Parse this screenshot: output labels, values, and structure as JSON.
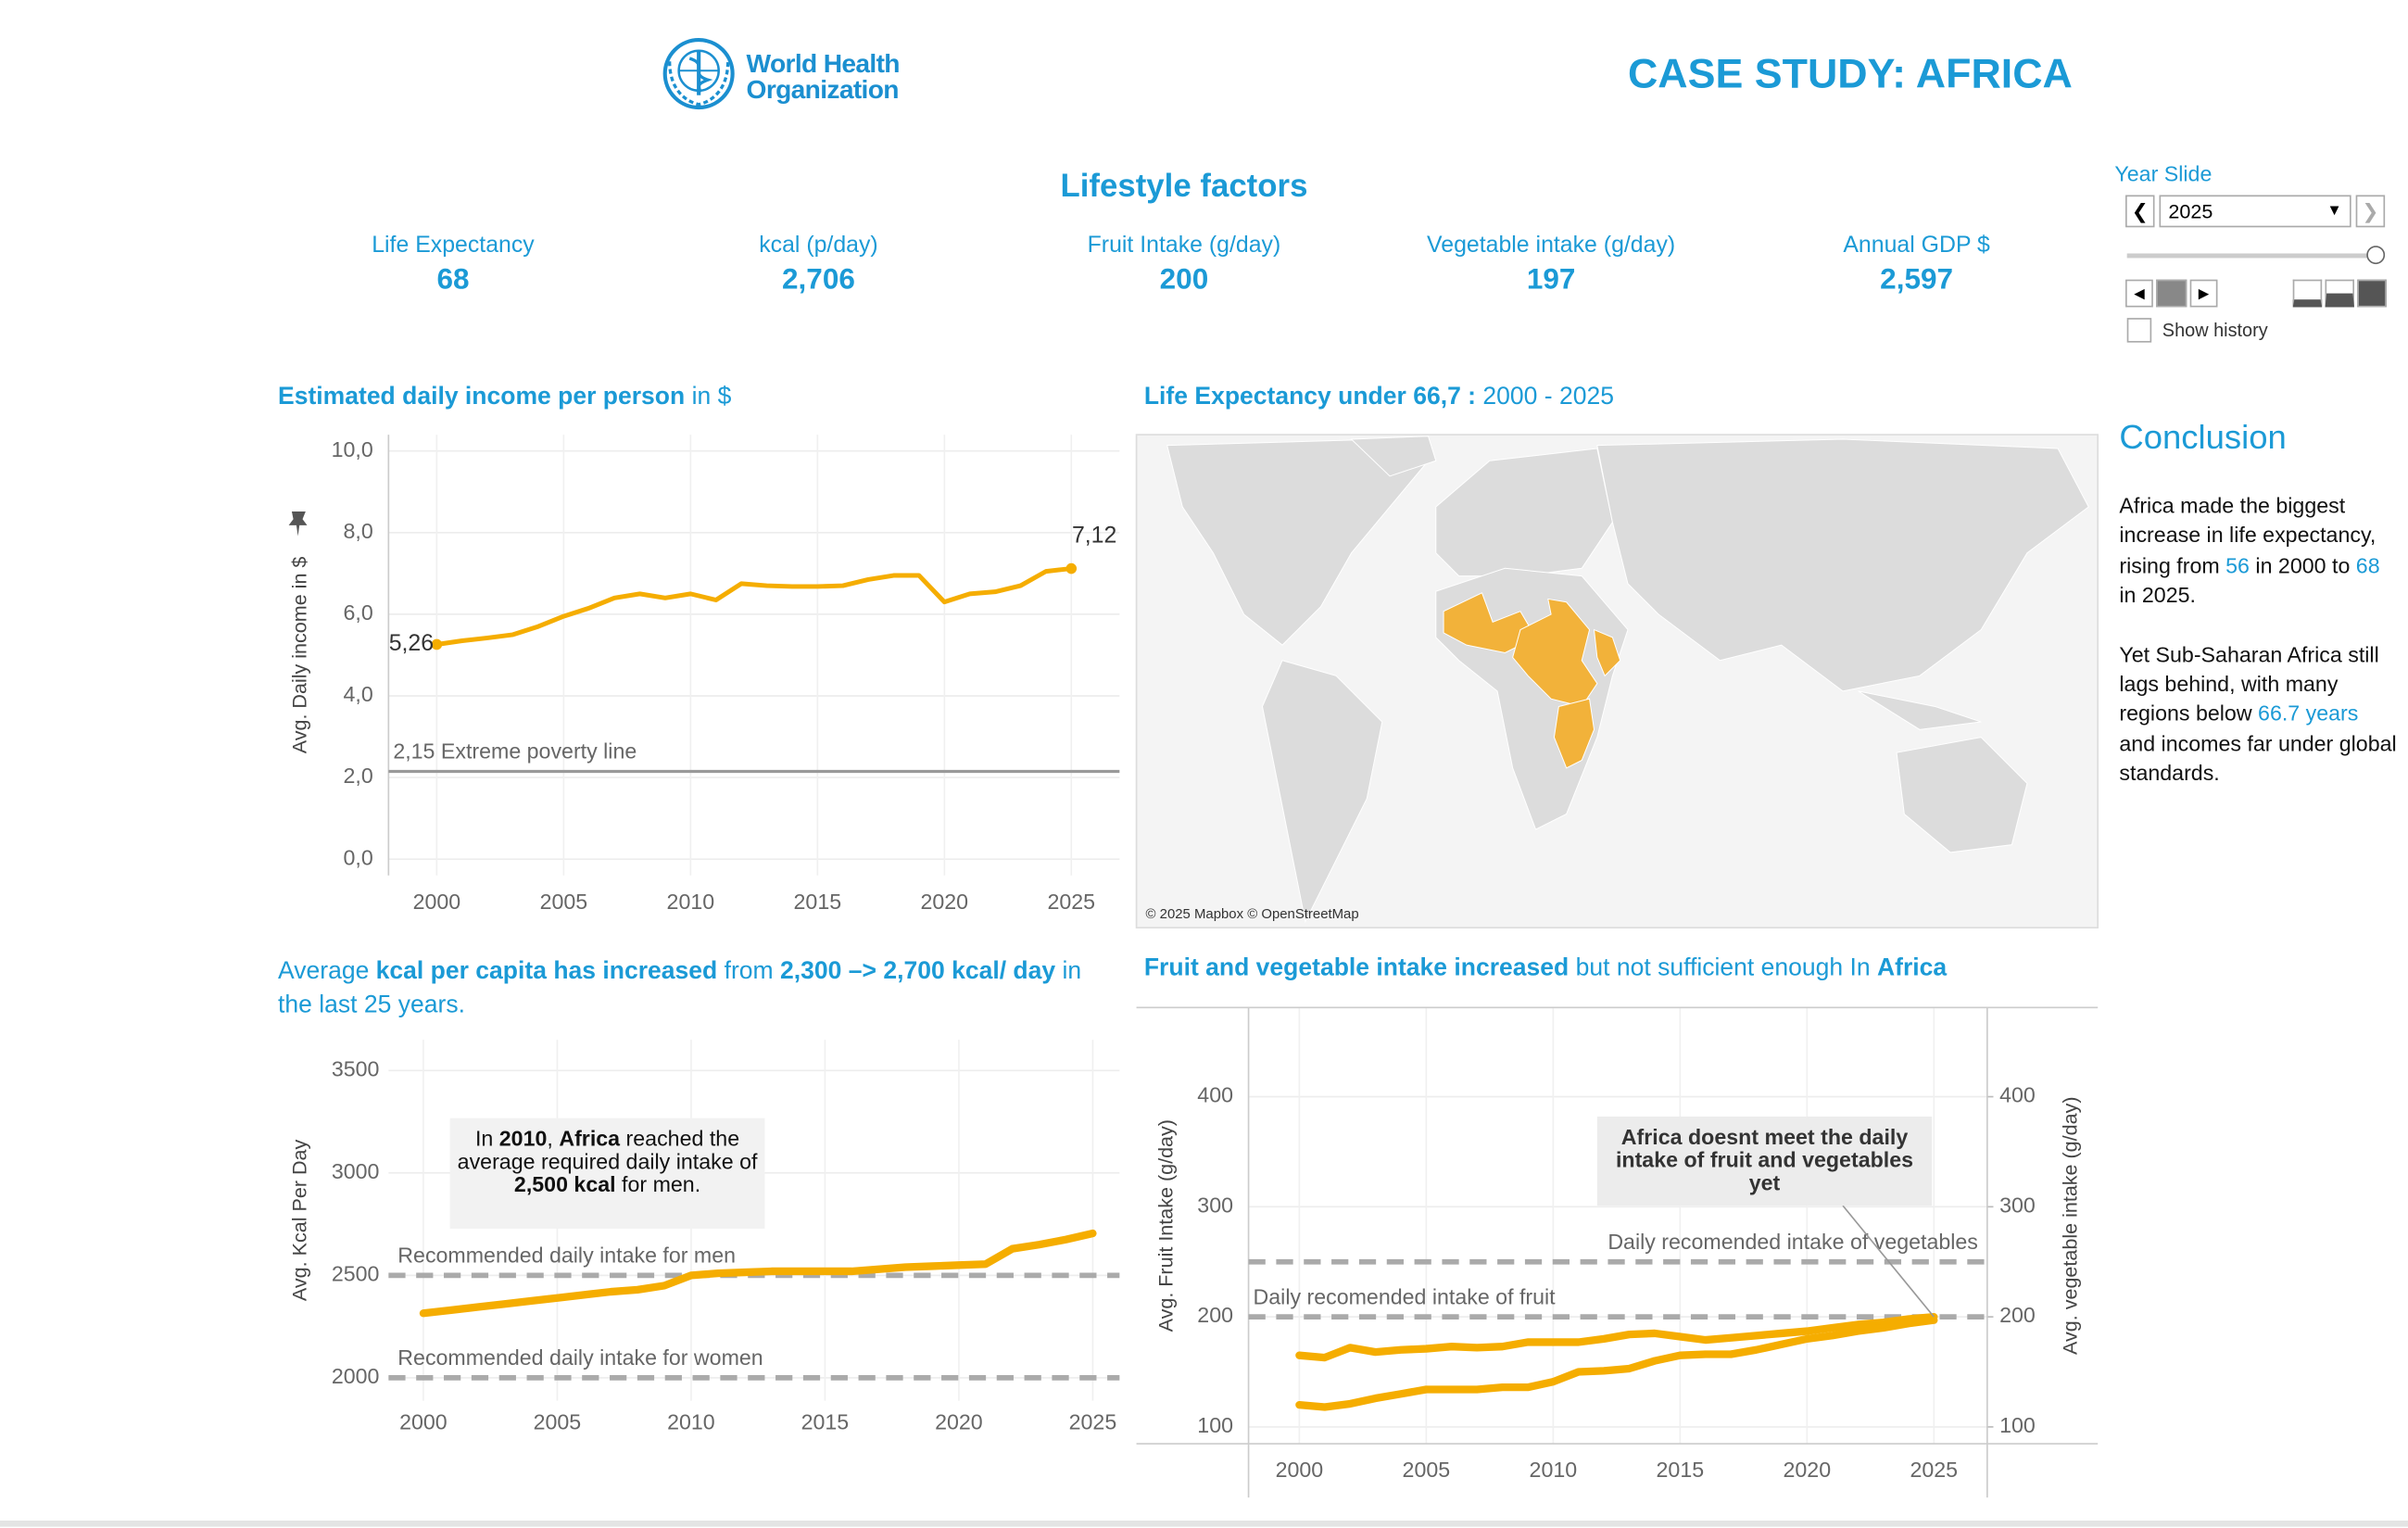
{
  "header": {
    "logo_line1": "World Health",
    "logo_line2": "Organization",
    "title": "CASE STUDY: AFRICA"
  },
  "kpis": {
    "title": "Lifestyle factors",
    "items": [
      {
        "label": "Life Expectancy",
        "value": "68"
      },
      {
        "label": "kcal (p/day)",
        "value": "2,706"
      },
      {
        "label": "Fruit Intake (g/day)",
        "value": "200"
      },
      {
        "label": "Vegetable intake (g/day)",
        "value": "197"
      },
      {
        "label": "Annual GDP $",
        "value": "2,597"
      }
    ]
  },
  "year_slider": {
    "title": "Year Slide",
    "selected": "2025",
    "show_history": "Show history"
  },
  "conclusion": {
    "title": "Conclusion",
    "paragraphs": [
      [
        {
          "text": "Africa made the biggest increase in life expectancy, rising from ",
          "highlight": false
        },
        {
          "text": "56",
          "highlight": true
        },
        {
          "text": " in 2000 to ",
          "highlight": false
        },
        {
          "text": "68",
          "highlight": true
        },
        {
          "text": " in 2025.",
          "highlight": false
        }
      ],
      [
        {
          "text": "Yet Sub-Saharan Africa still lags behind, with many regions below ",
          "highlight": false
        },
        {
          "text": "66.7 years",
          "highlight": true
        },
        {
          "text": " and incomes far under global standards.",
          "highlight": false
        }
      ]
    ]
  },
  "map": {
    "title_parts": [
      {
        "text": "Life Expectancy under 66,7 :",
        "bold": true
      },
      {
        "text": " 2000 - 2025",
        "bold": false
      }
    ],
    "attribution": "© 2025 Mapbox © OpenStreetMap"
  },
  "chart_data": [
    {
      "type": "line",
      "title_parts": [
        {
          "text": "Estimated daily income per person",
          "bold": true
        },
        {
          "text": " in $",
          "bold": false
        }
      ],
      "y_label": "Avg. Daily income in $",
      "color": "#f5ad00",
      "grid": true,
      "x": [
        2000,
        2001,
        2002,
        2003,
        2004,
        2005,
        2006,
        2007,
        2008,
        2009,
        2010,
        2011,
        2012,
        2013,
        2014,
        2015,
        2016,
        2017,
        2018,
        2019,
        2020,
        2021,
        2022,
        2023,
        2024,
        2025
      ],
      "values": [
        5.26,
        5.35,
        5.42,
        5.5,
        5.7,
        5.95,
        6.15,
        6.4,
        6.5,
        6.4,
        6.5,
        6.35,
        6.75,
        6.7,
        6.68,
        6.68,
        6.7,
        6.85,
        6.95,
        6.95,
        6.3,
        6.5,
        6.55,
        6.7,
        7.05,
        7.12
      ],
      "value_labels": [
        "5,26",
        null,
        null,
        null,
        null,
        null,
        null,
        null,
        null,
        null,
        null,
        null,
        null,
        null,
        null,
        null,
        null,
        null,
        null,
        null,
        null,
        null,
        null,
        null,
        null,
        "7,12"
      ],
      "xlim": [
        1998.1,
        2026.9
      ],
      "xticks": [
        2000,
        2005,
        2010,
        2015,
        2020,
        2025
      ],
      "ylim": [
        -0.4,
        10.4
      ],
      "yticks": [
        {
          "value": 0,
          "label": "0,0"
        },
        {
          "value": 2,
          "label": "2,0"
        },
        {
          "value": 4,
          "label": "4,0"
        },
        {
          "value": 6,
          "label": "6,0"
        },
        {
          "value": 8,
          "label": "8,0"
        },
        {
          "value": 10,
          "label": "10,0"
        }
      ],
      "reference_lines": [
        {
          "value": 2.15,
          "label": "2,15 Extreme poverty line",
          "style": "solid"
        }
      ]
    },
    {
      "type": "line",
      "title_parts": [
        {
          "text": "Average ",
          "bold": false
        },
        {
          "text": "kcal per capita has increased",
          "bold": true
        },
        {
          "text": " from ",
          "bold": false
        },
        {
          "text": "2,300 –> 2,700 kcal/ day",
          "bold": true
        },
        {
          "text": " in the last 25 years.",
          "bold": false
        }
      ],
      "y_label": "Avg. Kcal Per Day",
      "color": "#f5ad00",
      "grid": true,
      "x": [
        2000,
        2001,
        2002,
        2003,
        2004,
        2005,
        2006,
        2007,
        2008,
        2009,
        2010,
        2011,
        2012,
        2013,
        2014,
        2015,
        2016,
        2017,
        2018,
        2019,
        2020,
        2021,
        2022,
        2023,
        2024,
        2025
      ],
      "values": [
        2315,
        2330,
        2345,
        2360,
        2375,
        2390,
        2405,
        2420,
        2430,
        2450,
        2500,
        2510,
        2515,
        2520,
        2520,
        2520,
        2520,
        2530,
        2540,
        2545,
        2550,
        2555,
        2630,
        2650,
        2675,
        2705
      ],
      "xlim": [
        1998.7,
        2026.0
      ],
      "xticks": [
        2000,
        2005,
        2010,
        2015,
        2020,
        2025
      ],
      "ylim": [
        1888,
        3650
      ],
      "yticks": [
        2000,
        2500,
        3000,
        3500
      ],
      "reference_lines": [
        {
          "value": 2500,
          "label": "Recommended daily intake for men",
          "style": "dashed"
        },
        {
          "value": 2000,
          "label": "Recommended daily intake for women",
          "style": "dashed"
        }
      ],
      "annotation_parts": [
        {
          "text": "In ",
          "bold": false
        },
        {
          "text": "2010",
          "bold": true
        },
        {
          "text": ", ",
          "bold": false
        },
        {
          "text": "Africa",
          "bold": true
        },
        {
          "text": " reached the average required daily intake of ",
          "bold": false
        },
        {
          "text": "2,500 kcal",
          "bold": true
        },
        {
          "text": " for men.",
          "bold": false
        }
      ]
    },
    {
      "type": "line",
      "title_parts": [
        {
          "text": "Fruit and vegetable intake increased",
          "bold": true
        },
        {
          "text": " but not sufficient enough In ",
          "bold": false
        },
        {
          "text": "Africa",
          "bold": true
        }
      ],
      "y_label": "Avg. Fruit Intake (g/day)",
      "y2_label": "Avg. vegetable intake (g/day)",
      "grid": true,
      "x": [
        2000,
        2001,
        2002,
        2003,
        2004,
        2005,
        2006,
        2007,
        2008,
        2009,
        2010,
        2011,
        2012,
        2013,
        2014,
        2015,
        2016,
        2017,
        2018,
        2019,
        2020,
        2021,
        2022,
        2023,
        2024,
        2025
      ],
      "series": [
        {
          "name": "Avg. Fruit Intake (g/day)",
          "color": "#f5ad00",
          "axis": "y",
          "values": [
            165,
            163,
            172,
            168,
            170,
            171,
            173,
            172,
            173,
            177,
            177,
            177,
            180,
            184,
            185,
            182,
            179,
            181,
            183,
            185,
            187,
            190,
            193,
            195,
            198,
            200
          ]
        },
        {
          "name": "Avg. vegetable intake (g/day)",
          "color": "#f5ad00",
          "axis": "y2",
          "values": [
            120,
            118,
            121,
            126,
            130,
            134,
            134,
            134,
            136,
            136,
            141,
            150,
            151,
            153,
            160,
            165,
            166,
            166,
            170,
            175,
            180,
            183,
            187,
            190,
            194,
            197
          ]
        }
      ],
      "xlim": [
        1998.0,
        2027.1
      ],
      "xticks": [
        2000,
        2005,
        2010,
        2015,
        2020,
        2025
      ],
      "ylim": [
        84.7,
        481
      ],
      "yticks": [
        100,
        200,
        300,
        400
      ],
      "y2lim": [
        84.7,
        481
      ],
      "y2ticks": [
        100,
        200,
        300,
        400
      ],
      "reference_lines": [
        {
          "value": 250,
          "label": "Daily recomended intake of vegetables",
          "style": "dashed",
          "axis": "y2"
        },
        {
          "value": 200,
          "label": "Daily recomended intake of fruit",
          "style": "dashed",
          "axis": "y"
        }
      ],
      "annotation": "Africa doesnt meet the daily intake of fruit and vegetables yet"
    }
  ]
}
